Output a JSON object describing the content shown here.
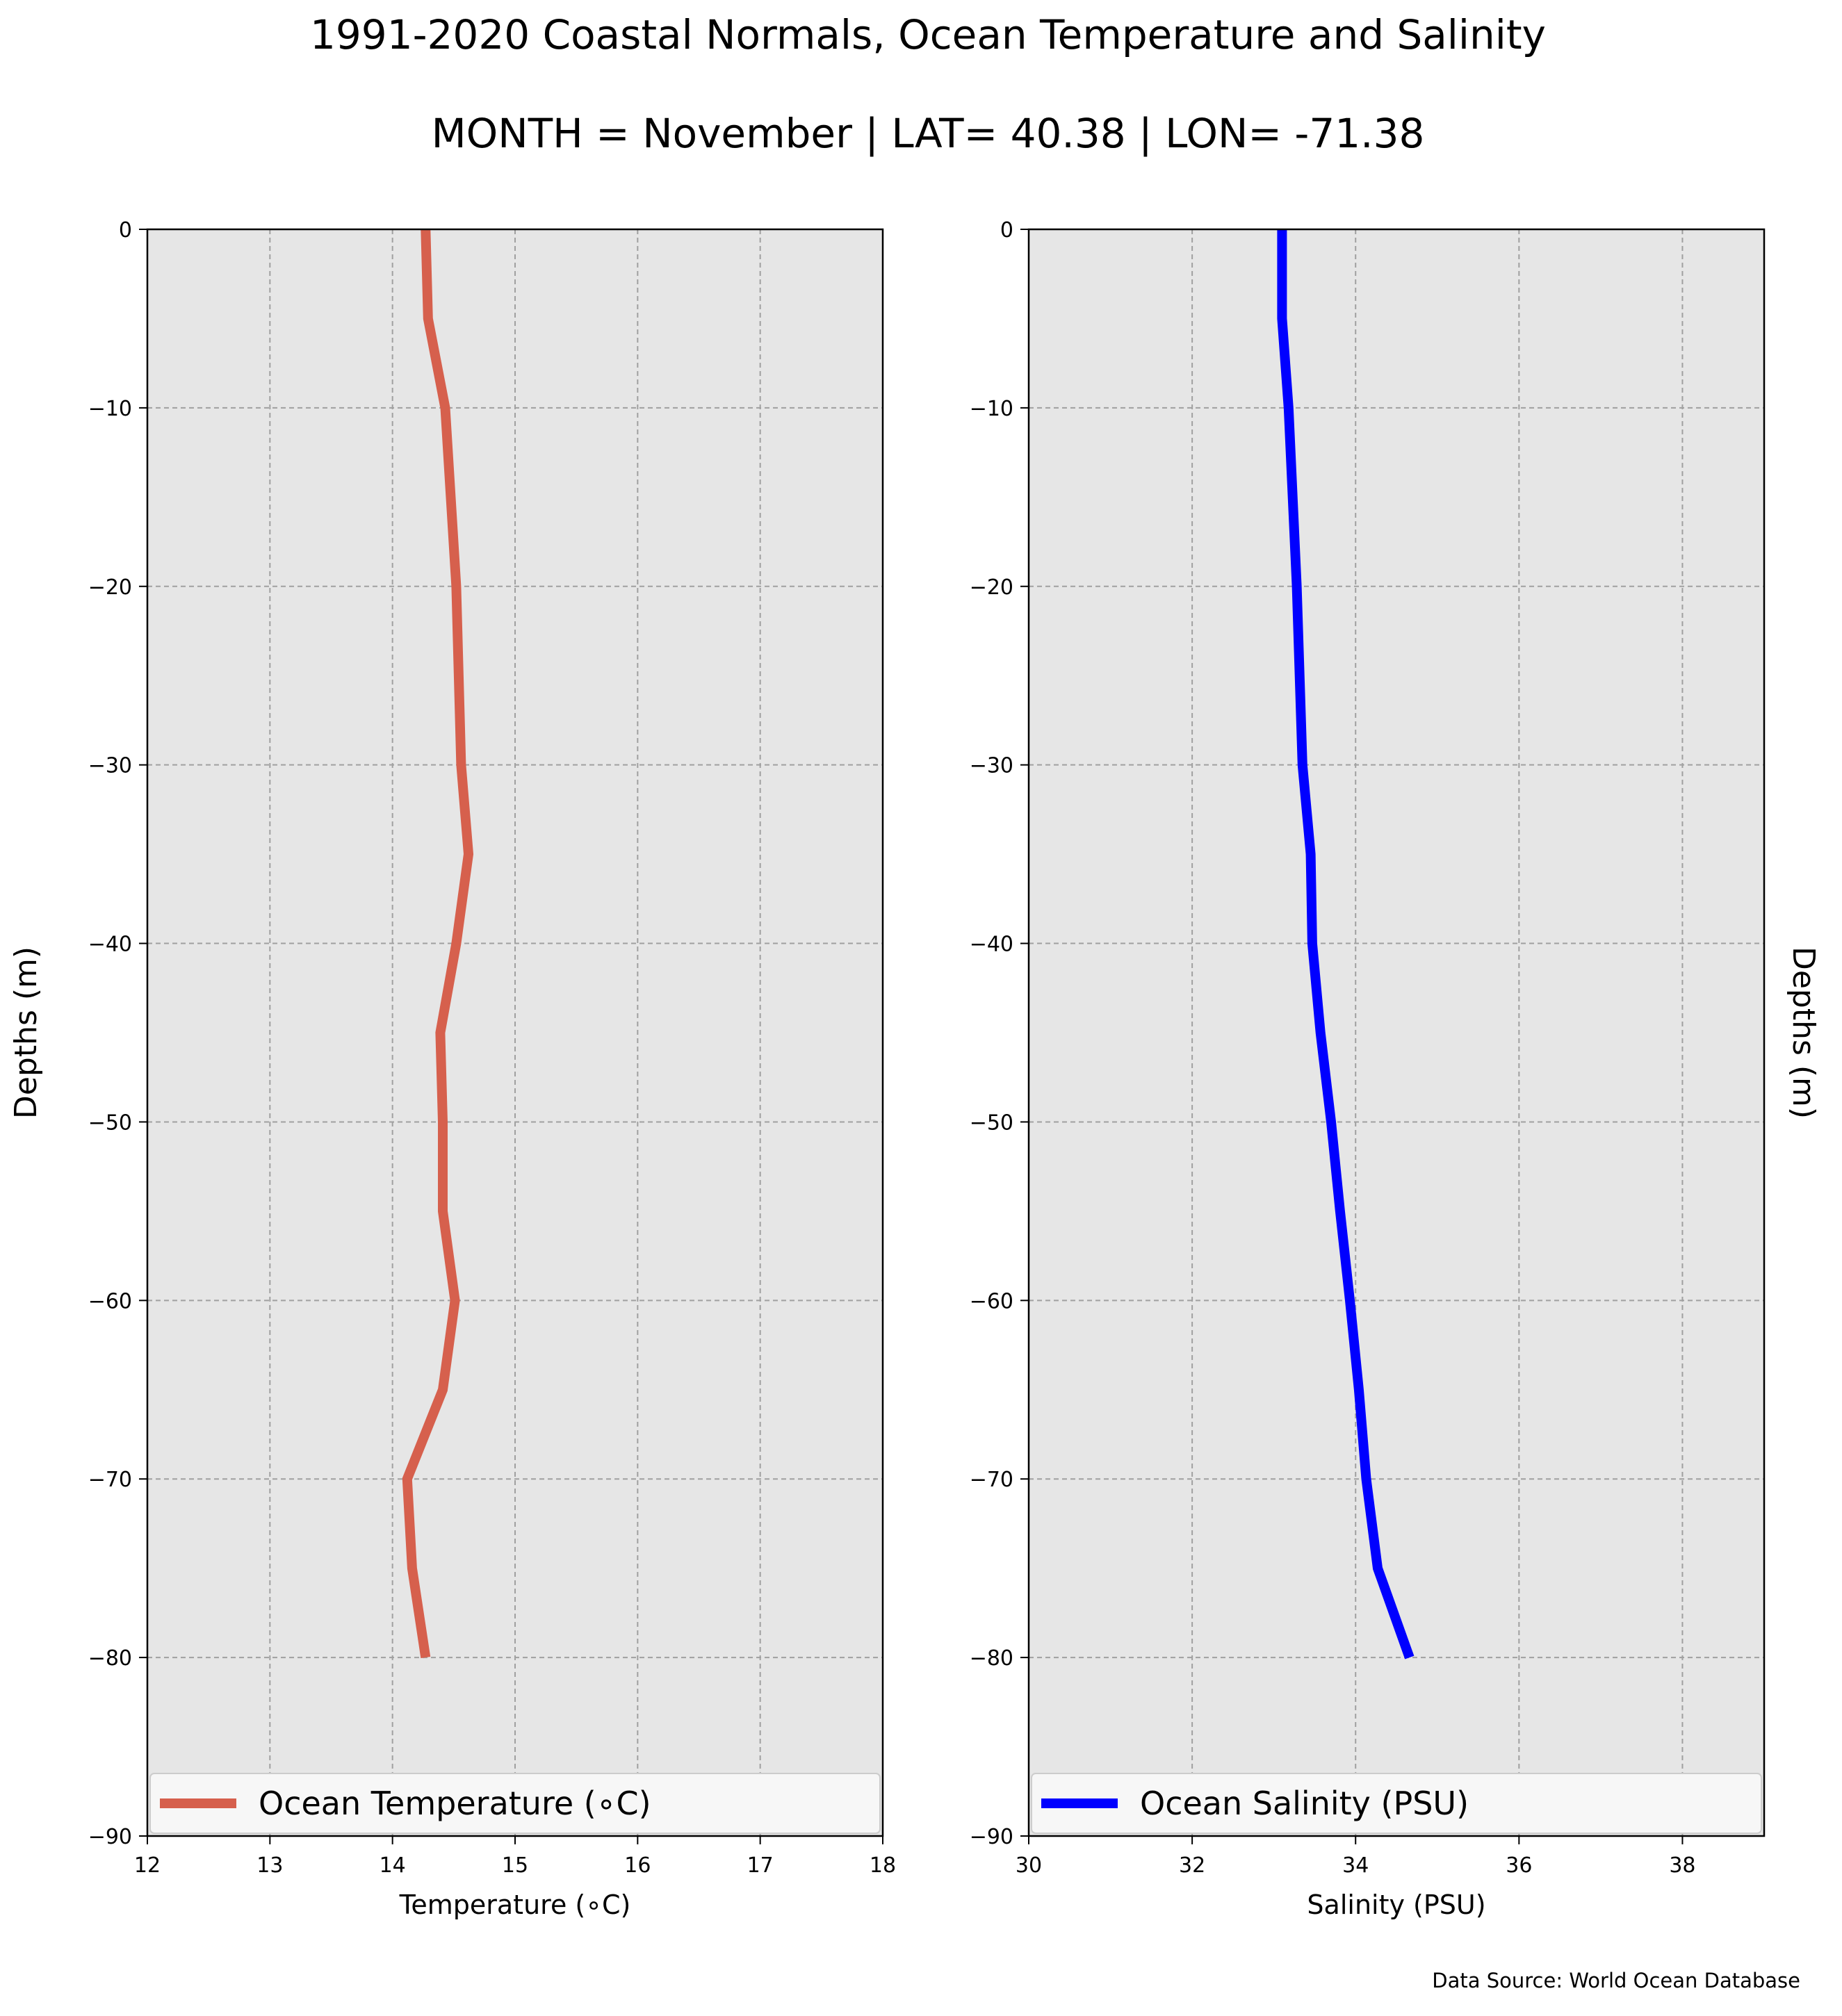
{
  "figure": {
    "title_line1": "1991-2020 Coastal Normals, Ocean Temperature and Salinity",
    "title_line2": "MONTH = November | LAT= 40.38 | LON= -71.38",
    "source_note": "Data Source: World Ocean Database"
  },
  "chart_data": [
    {
      "type": "line",
      "xlabel": "Temperature ($^\\circ$C)",
      "xlabel_display": "Temperature (∘C)",
      "ylabel": "Depths (m)",
      "ylabel_position": "left",
      "xlim": [
        12,
        18
      ],
      "ylim": [
        -90,
        0
      ],
      "xticks": [
        "12",
        "13",
        "14",
        "15",
        "16",
        "17",
        "18"
      ],
      "yticks": [
        "0",
        "−10",
        "−20",
        "−30",
        "−40",
        "−50",
        "−60",
        "−70",
        "−80",
        "−90"
      ],
      "grid": true,
      "legend_position": "bottom",
      "background": "#e6e6e6",
      "series": [
        {
          "name": "Ocean Temperature (∘C)",
          "color": "#d6604d",
          "x": [
            14.27,
            14.29,
            14.43,
            14.52,
            14.56,
            14.62,
            14.52,
            14.39,
            14.41,
            14.41,
            14.51,
            14.41,
            14.12,
            14.16,
            14.27
          ],
          "y": [
            0,
            -5,
            -10,
            -20,
            -30,
            -35,
            -40,
            -45,
            -50,
            -55,
            -60,
            -65,
            -70,
            -75,
            -80
          ]
        }
      ]
    },
    {
      "type": "line",
      "xlabel": "Salinity (PSU)",
      "ylabel": "Depths (m)",
      "ylabel_position": "right",
      "xlim": [
        30,
        39
      ],
      "ylim": [
        -90,
        0
      ],
      "xticks": [
        "30",
        "32",
        "34",
        "36",
        "38"
      ],
      "yticks": [
        "0",
        "−10",
        "−20",
        "−30",
        "−40",
        "−50",
        "−60",
        "−70",
        "−80",
        "−90"
      ],
      "grid": true,
      "legend_position": "bottom",
      "background": "#e6e6e6",
      "series": [
        {
          "name": "Ocean Salinity (PSU)",
          "color": "#0000ff",
          "x": [
            33.1,
            33.1,
            33.18,
            33.28,
            33.35,
            33.45,
            33.47,
            33.57,
            33.7,
            33.81,
            33.93,
            34.04,
            34.13,
            34.27,
            34.66
          ],
          "y": [
            0,
            -5,
            -10,
            -20,
            -30,
            -35,
            -40,
            -45,
            -50,
            -55,
            -60,
            -65,
            -70,
            -75,
            -80
          ]
        }
      ]
    }
  ]
}
